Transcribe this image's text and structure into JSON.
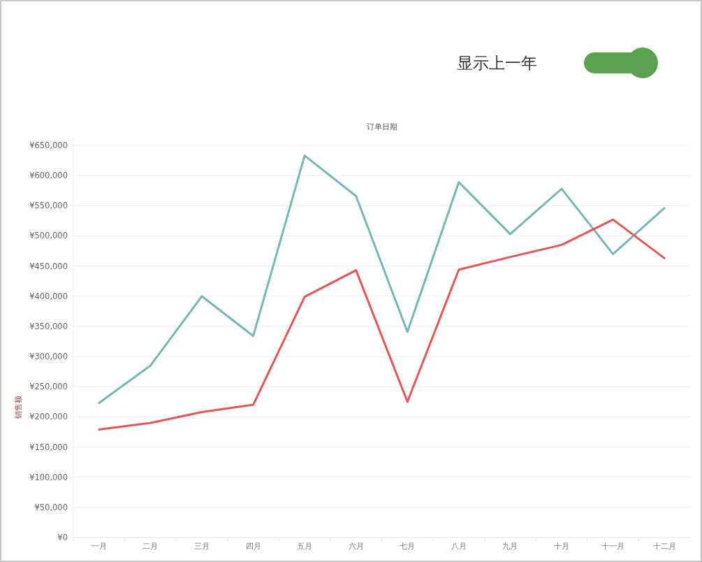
{
  "chart_data": {
    "type": "line",
    "xlabel": "订单日期",
    "ylabel": "销售额",
    "annotations": [
      "显示上一年"
    ],
    "categories": [
      "一月",
      "二月",
      "三月",
      "四月",
      "五月",
      "六月",
      "七月",
      "八月",
      "九月",
      "十月",
      "十一月",
      "十二月"
    ],
    "series": [
      {
        "color": "#76b7b2",
        "values": [
          223000,
          285000,
          400000,
          334000,
          633000,
          566000,
          341000,
          589000,
          503000,
          578000,
          470000,
          546000
        ]
      },
      {
        "color": "#e15759",
        "values": [
          179000,
          190000,
          208000,
          220000,
          399000,
          443000,
          225000,
          444000,
          465000,
          485000,
          527000,
          463000
        ]
      }
    ],
    "ylim": [
      0,
      665000
    ],
    "yticks": [
      {
        "value": 0,
        "label": "¥0"
      },
      {
        "value": 50000,
        "label": "¥50,000"
      },
      {
        "value": 100000,
        "label": "¥100,000"
      },
      {
        "value": 150000,
        "label": "¥150,000"
      },
      {
        "value": 200000,
        "label": "¥200,000"
      },
      {
        "value": 250000,
        "label": "¥250,000"
      },
      {
        "value": 300000,
        "label": "¥300,000"
      },
      {
        "value": 350000,
        "label": "¥350,000"
      },
      {
        "value": 400000,
        "label": "¥400,000"
      },
      {
        "value": 450000,
        "label": "¥450,000"
      },
      {
        "value": 500000,
        "label": "¥500,000"
      },
      {
        "value": 550000,
        "label": "¥550,000"
      },
      {
        "value": 600000,
        "label": "¥600,000"
      },
      {
        "value": 650000,
        "label": "¥650,000"
      }
    ],
    "grid": "y",
    "line_style": "solid",
    "marker": "none"
  }
}
